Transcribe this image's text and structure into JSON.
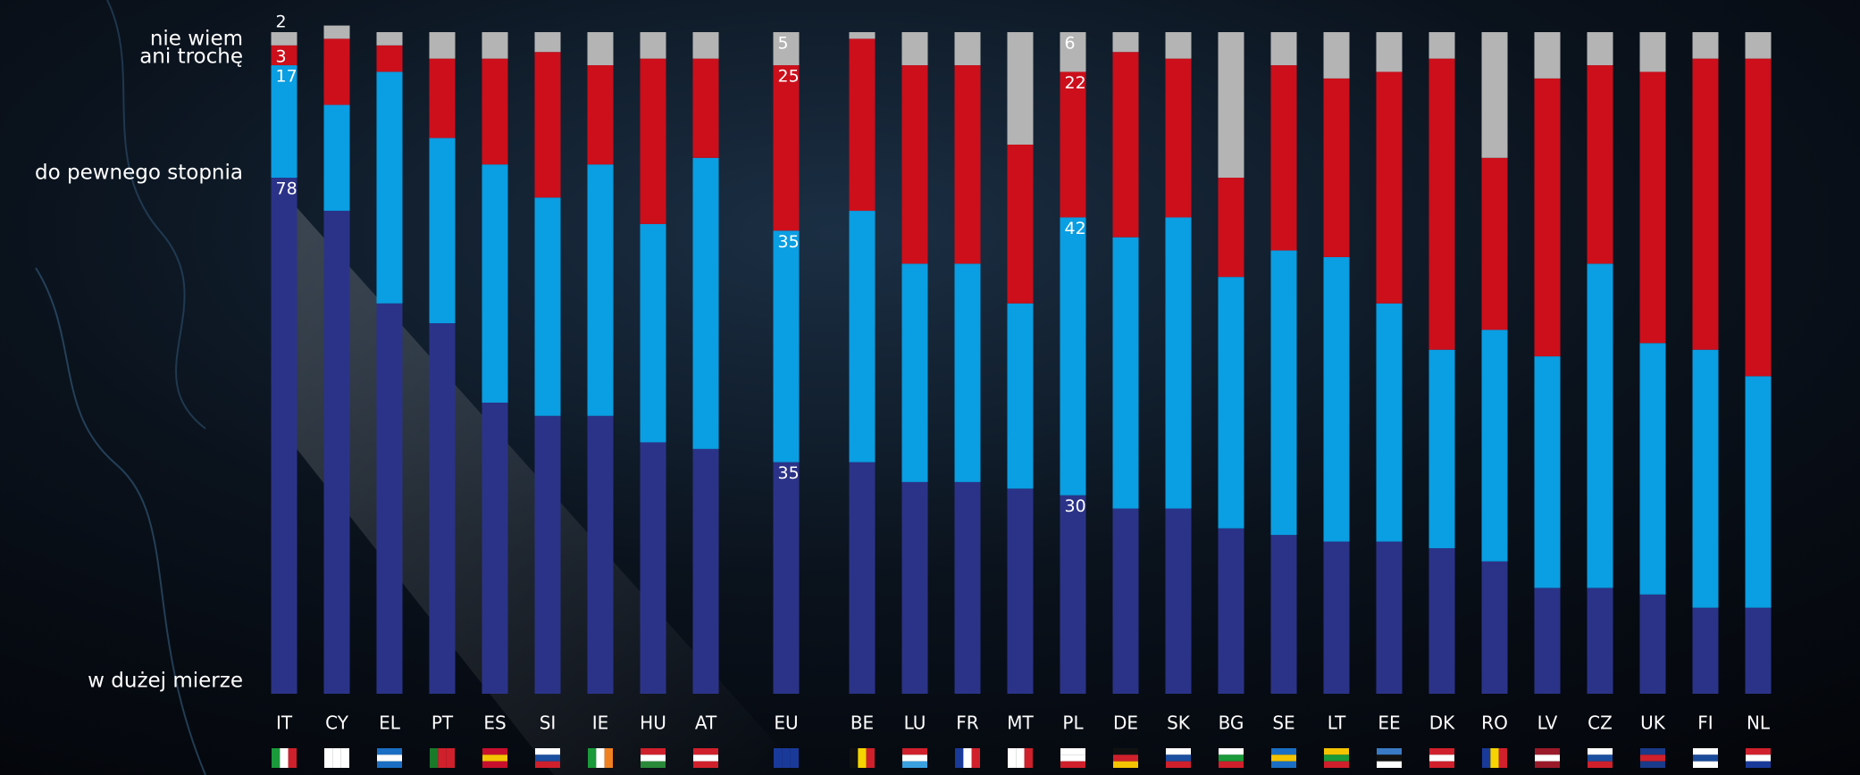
{
  "chart_data": {
    "type": "stacked_bar",
    "categories": [
      "IT",
      "CY",
      "EL",
      "PT",
      "ES",
      "SI",
      "IE",
      "HU",
      "AT",
      "EU",
      "BE",
      "LU",
      "FR",
      "MT",
      "PL",
      "DE",
      "SK",
      "BG",
      "SE",
      "LT",
      "EE",
      "DK",
      "RO",
      "LV",
      "CZ",
      "UK",
      "FI",
      "NL"
    ],
    "series": [
      {
        "name": "w dużej mierze",
        "color": "#2b3388",
        "values": [
          78,
          73,
          59,
          56,
          44,
          42,
          42,
          38,
          37,
          35,
          35,
          32,
          32,
          31,
          30,
          28,
          28,
          25,
          24,
          23,
          23,
          22,
          20,
          16,
          16,
          15,
          13,
          13
        ]
      },
      {
        "name": "do pewnego stopnia",
        "color": "#0a9ee2",
        "values": [
          17,
          16,
          35,
          28,
          36,
          33,
          38,
          33,
          44,
          35,
          38,
          33,
          33,
          28,
          42,
          41,
          44,
          38,
          43,
          43,
          36,
          30,
          35,
          35,
          49,
          38,
          39,
          35
        ]
      },
      {
        "name": "ani trochę",
        "color": "#cc0f1b",
        "values": [
          3,
          10,
          4,
          12,
          16,
          22,
          15,
          25,
          15,
          25,
          26,
          30,
          30,
          24,
          22,
          28,
          24,
          15,
          28,
          27,
          35,
          44,
          26,
          42,
          30,
          41,
          44,
          48
        ]
      },
      {
        "name": "nie wiem",
        "color": "#b4b4b4",
        "values": [
          2,
          2,
          2,
          4,
          4,
          3,
          5,
          4,
          4,
          5,
          1,
          5,
          5,
          17,
          6,
          3,
          4,
          22,
          5,
          7,
          6,
          4,
          19,
          7,
          5,
          6,
          4,
          4
        ]
      }
    ],
    "data_labels_for": [
      "IT",
      "EU",
      "PL"
    ],
    "ylim": [
      0,
      100
    ]
  }
}
